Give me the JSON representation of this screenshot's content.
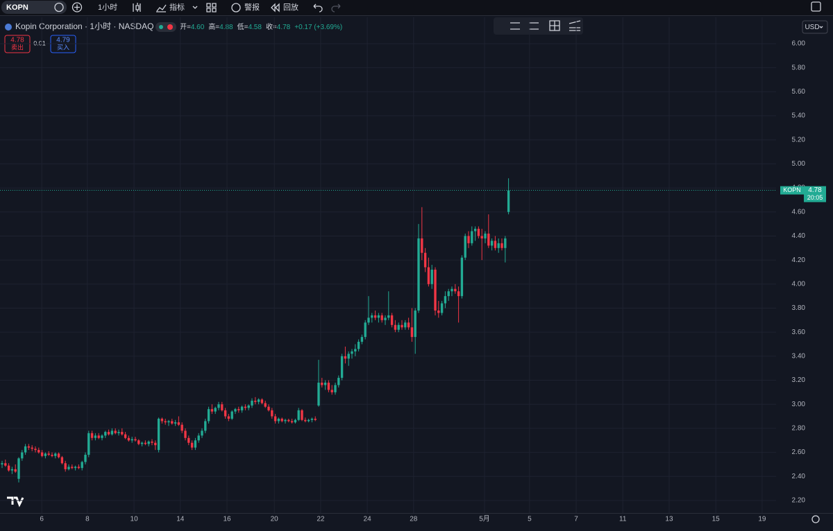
{
  "toolbar": {
    "symbol": "KOPN",
    "interval": "1小时",
    "indicators": "指标",
    "alert": "警报",
    "replay": "回放"
  },
  "header": {
    "title": "Kopin Corporation · 1小时 · NASDAQ",
    "ohlc": [
      {
        "label": "开=",
        "value": "4.60"
      },
      {
        "label": "高=",
        "value": "4.88"
      },
      {
        "label": "低=",
        "value": "4.58"
      },
      {
        "label": "收=",
        "value": "4.78"
      }
    ],
    "change": "+0.17 (+3.69%)"
  },
  "trade": {
    "sell_price": "4.78",
    "sell_label": "卖出",
    "spread": "0.01",
    "buy_price": "4.79",
    "buy_label": "买入"
  },
  "currency": "USD",
  "price_tag": {
    "symbol": "KOPN",
    "price": 4.78,
    "countdown": "20:05"
  },
  "chart_data": {
    "type": "candlestick",
    "up_color": "#22ab94",
    "down_color": "#f23645",
    "grid": true,
    "xlim": [
      -0.625,
      232.29
    ],
    "ylim": [
      2.096,
      6.219
    ],
    "xticks": [
      {
        "value": 11.9,
        "label": "6"
      },
      {
        "value": 25.6,
        "label": "8"
      },
      {
        "value": 39.6,
        "label": "10"
      },
      {
        "value": 53.5,
        "label": "14"
      },
      {
        "value": 67.5,
        "label": "16"
      },
      {
        "value": 81.7,
        "label": "20"
      },
      {
        "value": 95.6,
        "label": "22"
      },
      {
        "value": 109.6,
        "label": "24"
      },
      {
        "value": 123.5,
        "label": "28"
      },
      {
        "value": 144.8,
        "label": "5月"
      },
      {
        "value": 158.3,
        "label": "5"
      },
      {
        "value": 172.3,
        "label": "7"
      },
      {
        "value": 186.3,
        "label": "11"
      },
      {
        "value": 200.2,
        "label": "13"
      },
      {
        "value": 214.2,
        "label": "15"
      },
      {
        "value": 228.1,
        "label": "19"
      }
    ],
    "yticks": [
      {
        "value": 2.2,
        "label": "2.20"
      },
      {
        "value": 2.4,
        "label": "2.40"
      },
      {
        "value": 2.6,
        "label": "2.60"
      },
      {
        "value": 2.8,
        "label": "2.80"
      },
      {
        "value": 3,
        "label": "3.00"
      },
      {
        "value": 3.2,
        "label": "3.20"
      },
      {
        "value": 3.4,
        "label": "3.40"
      },
      {
        "value": 3.6,
        "label": "3.60"
      },
      {
        "value": 3.8,
        "label": "3.80"
      },
      {
        "value": 4,
        "label": "4.00"
      },
      {
        "value": 4.2,
        "label": "4.20"
      },
      {
        "value": 4.4,
        "label": "4.40"
      },
      {
        "value": 4.6,
        "label": "4.60"
      },
      {
        "value": 4.8,
        "label": "4.80"
      },
      {
        "value": 5,
        "label": "5.00"
      },
      {
        "value": 5.2,
        "label": "5.20"
      },
      {
        "value": 5.4,
        "label": "5.40"
      },
      {
        "value": 5.6,
        "label": "5.60"
      },
      {
        "value": 5.8,
        "label": "5.80"
      },
      {
        "value": 6,
        "label": "6.00"
      }
    ],
    "candles": [
      [
        2.5,
        2.53,
        2.47,
        2.51
      ],
      [
        2.51,
        2.54,
        2.48,
        2.49
      ],
      [
        2.49,
        2.51,
        2.44,
        2.45
      ],
      [
        2.45,
        2.48,
        2.42,
        2.46
      ],
      [
        2.46,
        2.5,
        2.43,
        2.44
      ],
      [
        2.38,
        2.56,
        2.35,
        2.55
      ],
      [
        2.55,
        2.62,
        2.53,
        2.6
      ],
      [
        2.6,
        2.67,
        2.58,
        2.65
      ],
      [
        2.65,
        2.67,
        2.62,
        2.64
      ],
      [
        2.64,
        2.66,
        2.61,
        2.63
      ],
      [
        2.63,
        2.65,
        2.6,
        2.62
      ],
      [
        2.62,
        2.64,
        2.59,
        2.6
      ],
      [
        2.6,
        2.62,
        2.56,
        2.57
      ],
      [
        2.57,
        2.6,
        2.55,
        2.59
      ],
      [
        2.59,
        2.61,
        2.57,
        2.58
      ],
      [
        2.58,
        2.6,
        2.56,
        2.57
      ],
      [
        2.57,
        2.6,
        2.55,
        2.59
      ],
      [
        2.59,
        2.6,
        2.55,
        2.56
      ],
      [
        2.56,
        2.57,
        2.5,
        2.51
      ],
      [
        2.51,
        2.53,
        2.44,
        2.46
      ],
      [
        2.46,
        2.5,
        2.45,
        2.48
      ],
      [
        2.48,
        2.5,
        2.46,
        2.47
      ],
      [
        2.47,
        2.49,
        2.45,
        2.48
      ],
      [
        2.48,
        2.5,
        2.46,
        2.47
      ],
      [
        2.47,
        2.53,
        2.45,
        2.52
      ],
      [
        2.52,
        2.6,
        2.5,
        2.58
      ],
      [
        2.58,
        2.78,
        2.56,
        2.76
      ],
      [
        2.76,
        2.78,
        2.7,
        2.72
      ],
      [
        2.72,
        2.76,
        2.7,
        2.74
      ],
      [
        2.74,
        2.76,
        2.71,
        2.72
      ],
      [
        2.72,
        2.75,
        2.7,
        2.74
      ],
      [
        2.74,
        2.78,
        2.72,
        2.77
      ],
      [
        2.77,
        2.79,
        2.74,
        2.75
      ],
      [
        2.75,
        2.8,
        2.74,
        2.78
      ],
      [
        2.78,
        2.8,
        2.75,
        2.76
      ],
      [
        2.76,
        2.79,
        2.74,
        2.77
      ],
      [
        2.77,
        2.8,
        2.74,
        2.75
      ],
      [
        2.75,
        2.77,
        2.71,
        2.72
      ],
      [
        2.72,
        2.74,
        2.69,
        2.7
      ],
      [
        2.7,
        2.73,
        2.68,
        2.71
      ],
      [
        2.71,
        2.73,
        2.69,
        2.7
      ],
      [
        2.7,
        2.71,
        2.66,
        2.67
      ],
      [
        2.67,
        2.69,
        2.65,
        2.68
      ],
      [
        2.68,
        2.7,
        2.66,
        2.67
      ],
      [
        2.67,
        2.7,
        2.65,
        2.69
      ],
      [
        2.69,
        2.71,
        2.66,
        2.68
      ],
      [
        2.68,
        2.7,
        2.62,
        2.66
      ],
      [
        2.62,
        2.89,
        2.6,
        2.88
      ],
      [
        2.88,
        2.89,
        2.84,
        2.86
      ],
      [
        2.86,
        2.88,
        2.83,
        2.85
      ],
      [
        2.85,
        2.87,
        2.82,
        2.86
      ],
      [
        2.86,
        2.88,
        2.83,
        2.84
      ],
      [
        2.84,
        2.87,
        2.82,
        2.85
      ],
      [
        2.85,
        2.9,
        2.82,
        2.83
      ],
      [
        2.83,
        2.85,
        2.76,
        2.78
      ],
      [
        2.78,
        2.8,
        2.7,
        2.72
      ],
      [
        2.72,
        2.74,
        2.66,
        2.68
      ],
      [
        2.68,
        2.7,
        2.62,
        2.64
      ],
      [
        2.64,
        2.72,
        2.62,
        2.7
      ],
      [
        2.7,
        2.76,
        2.68,
        2.74
      ],
      [
        2.74,
        2.8,
        2.72,
        2.78
      ],
      [
        2.78,
        2.88,
        2.76,
        2.86
      ],
      [
        2.86,
        2.98,
        2.84,
        2.96
      ],
      [
        2.96,
        3.0,
        2.92,
        2.94
      ],
      [
        2.94,
        2.98,
        2.92,
        2.97
      ],
      [
        2.97,
        3.02,
        2.95,
        3.0
      ],
      [
        3.0,
        3.02,
        2.94,
        2.95
      ],
      [
        2.95,
        2.97,
        2.88,
        2.9
      ],
      [
        2.9,
        2.92,
        2.86,
        2.88
      ],
      [
        2.88,
        2.95,
        2.87,
        2.94
      ],
      [
        2.94,
        2.97,
        2.92,
        2.96
      ],
      [
        2.96,
        2.98,
        2.93,
        2.95
      ],
      [
        2.95,
        2.99,
        2.93,
        2.98
      ],
      [
        2.98,
        3.0,
        2.95,
        2.97
      ],
      [
        2.97,
        3.0,
        2.95,
        2.99
      ],
      [
        2.99,
        3.05,
        2.97,
        3.03
      ],
      [
        3.03,
        3.06,
        3.0,
        3.02
      ],
      [
        3.02,
        3.05,
        3.0,
        3.04
      ],
      [
        3.04,
        3.05,
        3.0,
        3.01
      ],
      [
        3.01,
        3.03,
        2.97,
        2.98
      ],
      [
        2.98,
        3.0,
        2.94,
        2.95
      ],
      [
        2.95,
        2.97,
        2.88,
        2.9
      ],
      [
        2.9,
        2.92,
        2.84,
        2.86
      ],
      [
        2.86,
        2.89,
        2.84,
        2.88
      ],
      [
        2.88,
        2.89,
        2.85,
        2.86
      ],
      [
        2.86,
        2.88,
        2.84,
        2.87
      ],
      [
        2.87,
        2.88,
        2.85,
        2.86
      ],
      [
        2.86,
        2.88,
        2.84,
        2.85
      ],
      [
        2.85,
        2.88,
        2.84,
        2.87
      ],
      [
        2.87,
        2.97,
        2.86,
        2.95
      ],
      [
        2.95,
        2.96,
        2.86,
        2.87
      ],
      [
        2.87,
        2.89,
        2.85,
        2.86
      ],
      [
        2.86,
        2.88,
        2.85,
        2.87
      ],
      [
        2.87,
        2.89,
        2.85,
        2.88
      ],
      [
        2.88,
        2.9,
        2.86,
        2.87
      ],
      [
        2.99,
        3.37,
        2.98,
        3.18
      ],
      [
        3.18,
        3.22,
        3.14,
        3.16
      ],
      [
        3.16,
        3.2,
        3.12,
        3.18
      ],
      [
        3.18,
        3.2,
        3.1,
        3.12
      ],
      [
        3.12,
        3.16,
        3.08,
        3.1
      ],
      [
        3.1,
        3.18,
        3.08,
        3.16
      ],
      [
        3.16,
        3.24,
        3.14,
        3.22
      ],
      [
        3.22,
        3.42,
        3.2,
        3.4
      ],
      [
        3.4,
        3.48,
        3.34,
        3.38
      ],
      [
        3.38,
        3.44,
        3.32,
        3.42
      ],
      [
        3.42,
        3.46,
        3.38,
        3.44
      ],
      [
        3.44,
        3.5,
        3.4,
        3.46
      ],
      [
        3.46,
        3.54,
        3.44,
        3.52
      ],
      [
        3.52,
        3.58,
        3.5,
        3.56
      ],
      [
        3.56,
        3.7,
        3.54,
        3.68
      ],
      [
        3.68,
        3.9,
        3.66,
        3.72
      ],
      [
        3.72,
        3.76,
        3.68,
        3.74
      ],
      [
        3.74,
        3.78,
        3.7,
        3.72
      ],
      [
        3.72,
        3.76,
        3.68,
        3.74
      ],
      [
        3.74,
        3.76,
        3.68,
        3.7
      ],
      [
        3.7,
        3.74,
        3.66,
        3.72
      ],
      [
        3.72,
        3.94,
        3.7,
        3.74
      ],
      [
        3.74,
        3.76,
        3.64,
        3.66
      ],
      [
        3.66,
        3.7,
        3.6,
        3.62
      ],
      [
        3.62,
        3.68,
        3.6,
        3.66
      ],
      [
        3.66,
        3.7,
        3.62,
        3.64
      ],
      [
        3.64,
        3.7,
        3.62,
        3.68
      ],
      [
        3.68,
        3.72,
        3.62,
        3.64
      ],
      [
        3.64,
        3.8,
        3.52,
        3.56
      ],
      [
        3.56,
        3.8,
        3.42,
        3.78
      ],
      [
        3.78,
        4.5,
        3.76,
        4.38
      ],
      [
        4.38,
        4.64,
        4.2,
        4.26
      ],
      [
        4.26,
        4.3,
        4.1,
        4.14
      ],
      [
        4.14,
        4.22,
        3.98,
        4.0
      ],
      [
        4.0,
        4.16,
        3.96,
        4.12
      ],
      [
        4.12,
        4.14,
        3.74,
        3.78
      ],
      [
        3.78,
        3.86,
        3.72,
        3.76
      ],
      [
        3.76,
        3.86,
        3.74,
        3.84
      ],
      [
        3.84,
        3.94,
        3.8,
        3.9
      ],
      [
        3.9,
        3.96,
        3.86,
        3.94
      ],
      [
        3.94,
        3.98,
        3.9,
        3.96
      ],
      [
        3.96,
        4.0,
        3.92,
        3.94
      ],
      [
        3.94,
        3.98,
        3.68,
        3.9
      ],
      [
        3.9,
        4.24,
        3.88,
        4.22
      ],
      [
        4.22,
        4.42,
        4.2,
        4.4
      ],
      [
        4.4,
        4.44,
        4.3,
        4.34
      ],
      [
        4.34,
        4.48,
        4.32,
        4.44
      ],
      [
        4.44,
        4.48,
        4.36,
        4.46
      ],
      [
        4.46,
        4.48,
        4.38,
        4.4
      ],
      [
        4.4,
        4.46,
        4.2,
        4.38
      ],
      [
        4.38,
        4.44,
        4.34,
        4.42
      ],
      [
        4.42,
        4.58,
        4.3,
        4.32
      ],
      [
        4.32,
        4.38,
        4.28,
        4.36
      ],
      [
        4.36,
        4.4,
        4.28,
        4.3
      ],
      [
        4.3,
        4.38,
        4.26,
        4.34
      ],
      [
        4.34,
        4.38,
        4.28,
        4.3
      ],
      [
        4.3,
        4.4,
        4.18,
        4.38
      ],
      [
        4.6,
        4.88,
        4.58,
        4.78
      ]
    ]
  }
}
